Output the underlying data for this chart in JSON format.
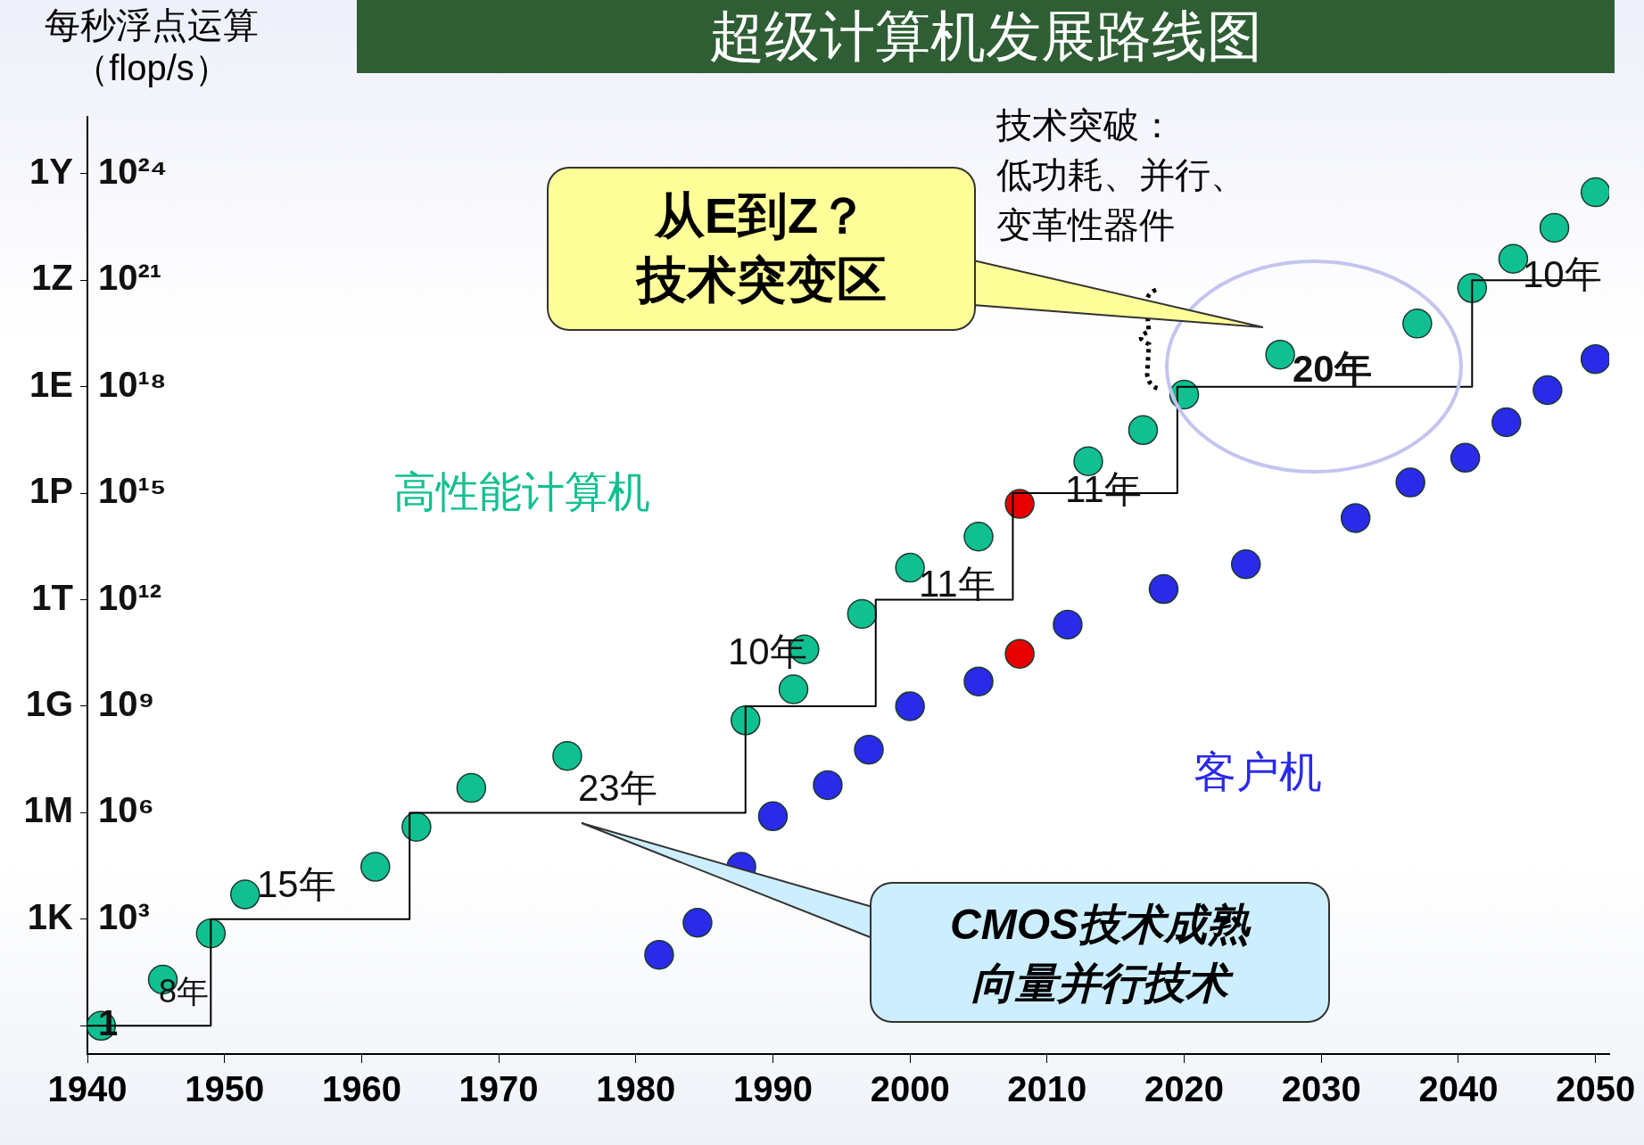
{
  "chart_data": {
    "type": "scatter",
    "title": "超级计算机发展路线图",
    "ylabel": "每秒浮点运算（flop/s）",
    "xlim": [
      1940,
      2051
    ],
    "xticks": [
      1940,
      1950,
      1960,
      1970,
      1980,
      1990,
      2000,
      2010,
      2020,
      2030,
      2040,
      2050
    ],
    "ylim": [
      0.16,
      4e+25
    ],
    "log": "y",
    "yticks": [
      1,
      {
        "value": 1000.0,
        "label": "10³"
      },
      {
        "value": 1000000.0,
        "label": "10⁶"
      },
      {
        "value": 1000000000.0,
        "label": "10⁹"
      },
      {
        "value": 1000000000000.0,
        "label": "10¹²"
      },
      {
        "value": 1000000000000000.0,
        "label": "10¹⁵"
      },
      {
        "value": 1e+18,
        "label": "10¹⁸"
      },
      {
        "value": 1e+21,
        "label": "10²¹"
      },
      {
        "value": 1e+24,
        "label": "10²⁴"
      }
    ],
    "grid": false,
    "legend": false,
    "marker": "circle",
    "series": [
      {
        "type": "line",
        "marker": "none",
        "color": "#000000",
        "x": [
          1940,
          1949,
          1949,
          1963.5,
          1963.5,
          1988,
          1988,
          1997.5,
          1997.5,
          2007.5,
          2007.5,
          2019.5,
          2019.5,
          2041,
          2041,
          2050
        ],
        "values": [
          1,
          1,
          1000.0,
          1000.0,
          1000000.0,
          1000000.0,
          1000000000.0,
          1000000000.0,
          1000000000000.0,
          1000000000000.0,
          1000000000000000.0,
          1000000000000000.0,
          1e+18,
          1e+18,
          1e+21,
          1e+21
        ]
      },
      {
        "name": "高性能计算机",
        "color": "#10c090",
        "x": [
          1941,
          1945.5,
          1949,
          1951.5,
          1961,
          1964,
          1968,
          1975,
          1988,
          1991.5,
          1992.3,
          1996.5,
          2000,
          2005,
          2013,
          2017,
          2020,
          2027,
          2037,
          2041,
          2044,
          2047,
          2050
        ],
        "values": [
          1,
          20,
          400,
          5000,
          30000.0,
          400000.0,
          5000000.0,
          40000000.0,
          400000000.0,
          3000000000.0,
          40000000000.0,
          400000000000.0,
          8000000000000.0,
          60000000000000.0,
          8000000000000000.0,
          6e+16,
          6e+17,
          8e+18,
          6e+19,
          6e+20,
          4e+21,
          3e+22,
          3e+23
        ]
      },
      {
        "color": "#e80000",
        "x": [
          2008,
          2008
        ],
        "values": [
          500000000000000.0,
          30000000000.0
        ]
      },
      {
        "name": "客户机",
        "color": "#2a2ae8",
        "x": [
          1981.7,
          1984.5,
          1987.7,
          1990,
          1994,
          1997,
          2000,
          2005,
          2011.5,
          2018.5,
          2024.5,
          2032.5,
          2036.5,
          2040.5,
          2043.5,
          2046.5,
          2050
        ],
        "values": [
          100,
          800,
          30000.0,
          800000.0,
          6000000.0,
          60000000.0,
          1000000000.0,
          5000000000.0,
          200000000000.0,
          2000000000000.0,
          10000000000000.0,
          200000000000000.0,
          2000000000000000.0,
          1e+16,
          1e+17,
          8e+17,
          6e+18
        ]
      }
    ],
    "annotations": [
      "8年",
      "15年",
      "23年",
      "10年",
      "11年",
      "11年",
      "20年",
      "10年",
      "技术突破：低功耗、并行、变革性器件",
      "从E到Z？技术突变区",
      "CMOS技术成熟向量并行技术",
      "1K",
      "1M",
      "1G",
      "1T",
      "1P",
      "1E",
      "1Z",
      "1Y"
    ]
  }
}
